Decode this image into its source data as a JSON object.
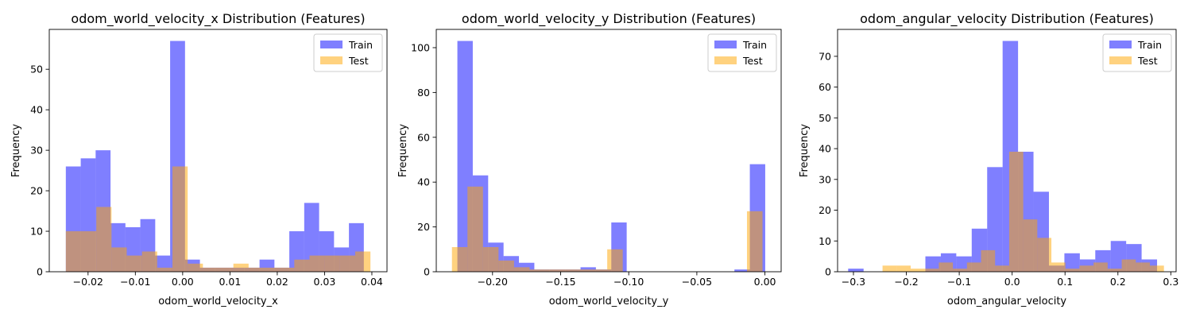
{
  "colors": {
    "train": "#0000ff",
    "test": "#ffa500",
    "axis": "#000000"
  },
  "chart_data": [
    {
      "type": "bar",
      "title": "odom_world_velocity_x Distribution (Features)",
      "xlabel": "odom_world_velocity_x",
      "ylabel": "Frequency",
      "xlim": [
        -0.0282,
        0.0432
      ],
      "ylim": [
        0,
        59.85
      ],
      "xticks": [
        -0.02,
        -0.01,
        0.0,
        0.01,
        0.02,
        0.03,
        0.04
      ],
      "xtick_labels": [
        "−0.02",
        "−0.01",
        "0.00",
        "0.01",
        "0.02",
        "0.03",
        "0.04"
      ],
      "yticks": [
        0,
        10,
        20,
        30,
        40,
        50
      ],
      "ytick_labels": [
        "0",
        "10",
        "20",
        "30",
        "40",
        "50"
      ],
      "legend": {
        "position": "top-right",
        "entries": [
          "Train",
          "Test"
        ]
      },
      "series": [
        {
          "name": "Train",
          "bin_edges": [
            -0.0247,
            -0.02155,
            -0.0184,
            -0.01525,
            -0.0121,
            -0.00895,
            -0.0058,
            -0.00265,
            0.0005,
            0.00365,
            0.0068,
            0.00995,
            0.0131,
            0.01625,
            0.0194,
            0.02255,
            0.0257,
            0.02885,
            0.032,
            0.03515,
            0.0383,
            0.04
          ],
          "counts": [
            26,
            28,
            30,
            12,
            11,
            13,
            4,
            57,
            3,
            1,
            1,
            1,
            1,
            3,
            1,
            10,
            17,
            10,
            6,
            12,
            0
          ]
        },
        {
          "name": "Test",
          "bin_edges": [
            -0.0247,
            -0.02148,
            -0.01826,
            -0.01504,
            -0.01182,
            -0.0086,
            -0.00538,
            -0.00216,
            0.00106,
            0.00428,
            0.0075,
            0.01072,
            0.01394,
            0.01716,
            0.02038,
            0.0236,
            0.02682,
            0.03004,
            0.03326,
            0.03648,
            0.0397
          ],
          "counts": [
            10,
            10,
            16,
            6,
            4,
            5,
            1,
            26,
            2,
            1,
            1,
            2,
            1,
            1,
            1,
            3,
            4,
            4,
            4,
            5
          ]
        }
      ]
    },
    {
      "type": "bar",
      "title": "odom_world_velocity_y Distribution (Features)",
      "xlabel": "odom_world_velocity_y",
      "ylabel": "Frequency",
      "xlim": [
        -0.2413,
        0.0119
      ],
      "ylim": [
        0,
        108.15
      ],
      "xticks": [
        -0.2,
        -0.15,
        -0.1,
        -0.05,
        0.0
      ],
      "xtick_labels": [
        "−0.20",
        "−0.15",
        "−0.10",
        "−0.05",
        "0.00"
      ],
      "yticks": [
        0,
        20,
        40,
        60,
        80,
        100
      ],
      "ytick_labels": [
        "0",
        "20",
        "40",
        "60",
        "80",
        "100"
      ],
      "legend": {
        "position": "top-right",
        "entries": [
          "Train",
          "Test"
        ]
      },
      "series": [
        {
          "name": "Train",
          "bin_edges": [
            -0.2258,
            -0.2145,
            -0.2032,
            -0.1919,
            -0.1806,
            -0.1693,
            -0.158,
            -0.1467,
            -0.1354,
            -0.1241,
            -0.1128,
            -0.1015,
            -0.0902,
            -0.0789,
            -0.0676,
            -0.0563,
            -0.045,
            -0.0337,
            -0.0224,
            -0.0111,
            0.0002
          ],
          "counts": [
            103,
            43,
            13,
            7,
            4,
            1,
            1,
            1,
            2,
            1,
            22,
            0,
            0,
            0,
            0,
            0,
            0,
            0,
            1,
            48
          ]
        },
        {
          "name": "Test",
          "bin_edges": [
            -0.2298,
            -0.2184,
            -0.207,
            -0.1956,
            -0.1842,
            -0.1728,
            -0.1614,
            -0.15,
            -0.1386,
            -0.1272,
            -0.1158,
            -0.1044,
            -0.093,
            -0.0816,
            -0.0702,
            -0.0588,
            -0.0474,
            -0.036,
            -0.0246,
            -0.0132,
            -0.0018
          ],
          "counts": [
            11,
            38,
            11,
            5,
            2,
            1,
            1,
            1,
            1,
            1,
            10,
            0,
            0,
            0,
            0,
            0,
            0,
            0,
            0,
            27
          ]
        }
      ]
    },
    {
      "type": "bar",
      "title": "odom_angular_velocity Distribution (Features)",
      "xlabel": "odom_angular_velocity",
      "ylabel": "Frequency",
      "xlim": [
        -0.33,
        0.31
      ],
      "ylim": [
        0,
        78.75
      ],
      "xticks": [
        -0.3,
        -0.2,
        -0.1,
        0.0,
        0.1,
        0.2,
        0.3
      ],
      "xtick_labels": [
        "−0.3",
        "−0.2",
        "−0.1",
        "0.0",
        "0.1",
        "0.2",
        "0.3"
      ],
      "yticks": [
        0,
        10,
        20,
        30,
        40,
        50,
        60,
        70
      ],
      "ytick_labels": [
        "0",
        "10",
        "20",
        "30",
        "40",
        "50",
        "60",
        "70"
      ],
      "legend": {
        "position": "top-right",
        "entries": [
          "Train",
          "Test"
        ]
      },
      "series": [
        {
          "name": "Train",
          "bin_edges": [
            -0.31,
            -0.2808,
            -0.2516,
            -0.2224,
            -0.1932,
            -0.164,
            -0.1348,
            -0.1056,
            -0.0764,
            -0.0472,
            -0.018,
            0.0112,
            0.0404,
            0.0696,
            0.0988,
            0.128,
            0.1572,
            0.1864,
            0.2156,
            0.2448,
            0.274
          ],
          "counts": [
            1,
            0,
            0,
            0,
            0,
            5,
            6,
            5,
            14,
            34,
            75,
            39,
            26,
            2,
            6,
            4,
            7,
            10,
            9,
            4
          ]
        },
        {
          "name": "Test",
          "bin_edges": [
            -0.245,
            -0.2184,
            -0.1918,
            -0.1652,
            -0.1386,
            -0.112,
            -0.0854,
            -0.0588,
            -0.0322,
            -0.0056,
            0.021,
            0.0476,
            0.0742,
            0.1008,
            0.1274,
            0.154,
            0.1806,
            0.2072,
            0.2338,
            0.2604,
            0.287
          ],
          "counts": [
            2,
            2,
            1,
            1,
            3,
            1,
            3,
            7,
            2,
            39,
            17,
            11,
            3,
            1,
            2,
            3,
            1,
            4,
            3,
            2
          ]
        }
      ]
    }
  ]
}
